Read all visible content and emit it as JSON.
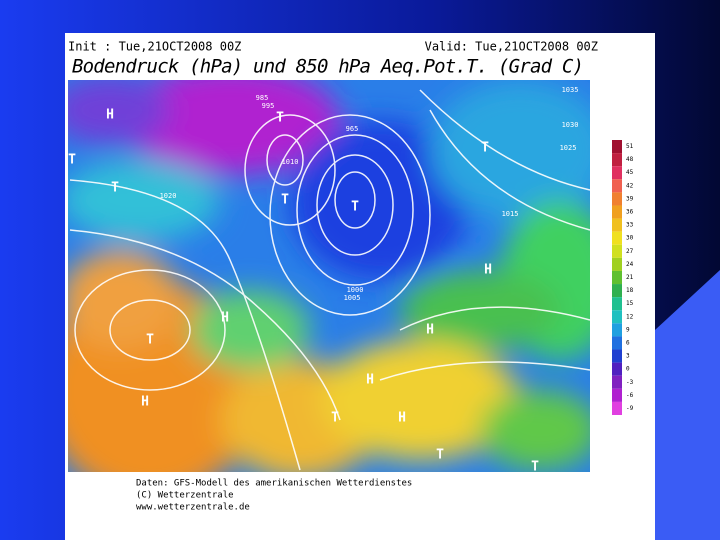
{
  "header": {
    "init": "Init : Tue,21OCT2008 00Z",
    "valid": "Valid: Tue,21OCT2008 00Z",
    "title": "Bodendruck (hPa) und 850 hPa Aeq.Pot.T. (Grad C)"
  },
  "map": {
    "labels": [
      "H",
      "T",
      "T",
      "T",
      "T",
      "T",
      "H",
      "T",
      "H",
      "H",
      "T",
      "H",
      "T",
      "H",
      "H",
      "T",
      "T",
      "1035",
      "1030",
      "1025",
      "1020",
      "1015",
      "1010",
      "1005",
      "1000",
      "995",
      "985",
      "965"
    ]
  },
  "legend": {
    "labels": [
      "51",
      "48",
      "45",
      "42",
      "39",
      "36",
      "33",
      "30",
      "27",
      "24",
      "21",
      "18",
      "15",
      "12",
      "9",
      "6",
      "3",
      "0",
      "-3",
      "-6",
      "-9"
    ]
  },
  "footer": {
    "lines": [
      "Daten: GFS-Modell des amerikanischen Wetterdienstes",
      "(C) Wetterzentrale",
      "www.wetterzentrale.de"
    ]
  }
}
